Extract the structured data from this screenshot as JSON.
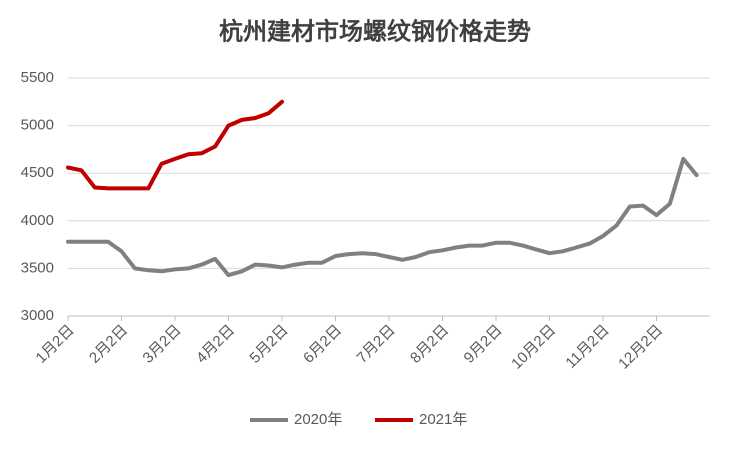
{
  "chart_data": {
    "type": "line",
    "title": "杭州建材市场螺纹钢价格走势",
    "categories": [
      "1月2日",
      null,
      null,
      null,
      "2月2日",
      null,
      null,
      null,
      "3月2日",
      null,
      null,
      null,
      "4月2日",
      null,
      null,
      null,
      "5月2日",
      null,
      null,
      null,
      "6月2日",
      null,
      null,
      null,
      "7月2日",
      null,
      null,
      null,
      "8月2日",
      null,
      null,
      null,
      "9月2日",
      null,
      null,
      null,
      "10月2日",
      null,
      null,
      null,
      "11月2日",
      null,
      null,
      null,
      "12月2日",
      null,
      null,
      null
    ],
    "series": [
      {
        "name": "2020年",
        "color": "#808080",
        "values": [
          3780,
          3780,
          3780,
          3780,
          3680,
          3500,
          3480,
          3470,
          3490,
          3500,
          3540,
          3600,
          3430,
          3470,
          3540,
          3530,
          3510,
          3540,
          3560,
          3560,
          3630,
          3650,
          3660,
          3650,
          3620,
          3590,
          3620,
          3670,
          3690,
          3720,
          3740,
          3740,
          3770,
          3770,
          3740,
          3700,
          3660,
          3680,
          3720,
          3760,
          3840,
          3950,
          4150,
          4160,
          4060,
          4180,
          4650,
          4480
        ]
      },
      {
        "name": "2021年",
        "color": "#c00000",
        "values": [
          4560,
          4530,
          4350,
          4340,
          4340,
          4340,
          4340,
          4600,
          4650,
          4700,
          4710,
          4780,
          5000,
          5060,
          5080,
          5130,
          5250,
          null,
          null,
          null,
          null,
          null,
          null,
          null,
          null,
          null,
          null,
          null,
          null,
          null,
          null,
          null,
          null,
          null,
          null,
          null,
          null,
          null,
          null,
          null,
          null,
          null,
          null,
          null,
          null,
          null,
          null,
          null
        ]
      }
    ],
    "ylim": [
      3000,
      5500
    ],
    "yticks": [
      3000,
      3500,
      4000,
      4500,
      5000,
      5500
    ],
    "grid": true,
    "legend": "bottom"
  }
}
